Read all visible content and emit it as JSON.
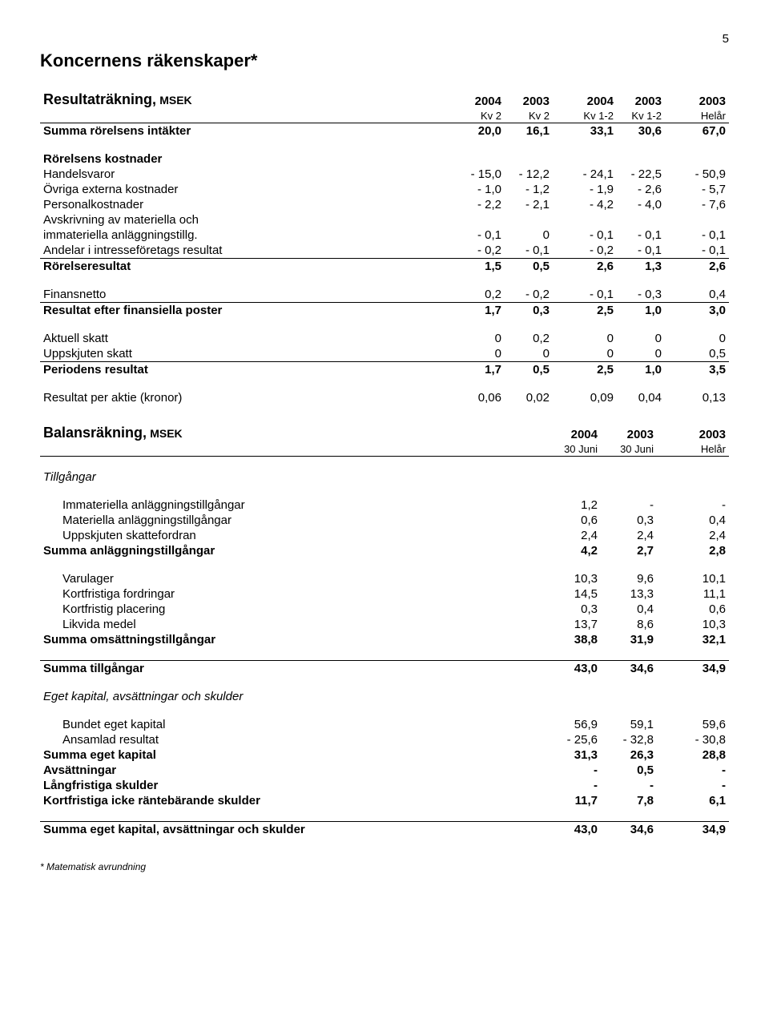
{
  "page_number": "5",
  "main_title": "Koncernens räkenskaper*",
  "income": {
    "title": "Resultaträkning,",
    "unit": "MSEK",
    "year_headers": [
      "2004",
      "2003",
      "2004",
      "2003",
      "2003"
    ],
    "sub_headers": [
      "Kv 2",
      "Kv 2",
      "Kv 1-2",
      "Kv 1-2",
      "Helår"
    ],
    "rows": [
      {
        "label": "Summa rörelsens intäkter",
        "vals": [
          "20,0",
          "16,1",
          "33,1",
          "30,6",
          "67,0"
        ],
        "bold": true,
        "space_after": true
      },
      {
        "label": "Rörelsens kostnader",
        "vals": [
          "",
          "",
          "",
          "",
          ""
        ],
        "bold": true
      },
      {
        "label": "Handelsvaror",
        "vals": [
          "- 15,0",
          "- 12,2",
          "- 24,1",
          "- 22,5",
          "- 50,9"
        ]
      },
      {
        "label": "Övriga externa kostnader",
        "vals": [
          "- 1,0",
          "- 1,2",
          "- 1,9",
          "- 2,6",
          "- 5,7"
        ]
      },
      {
        "label": "Personalkostnader",
        "vals": [
          "- 2,2",
          "- 2,1",
          "- 4,2",
          "- 4,0",
          "- 7,6"
        ]
      },
      {
        "label": "Avskrivning av materiella och",
        "vals": [
          "",
          "",
          "",
          "",
          ""
        ]
      },
      {
        "label": "immateriella anläggningstillg.",
        "vals": [
          "- 0,1",
          "0",
          "- 0,1",
          "- 0,1",
          "- 0,1"
        ]
      },
      {
        "label": "Andelar i intresseföretags resultat",
        "vals": [
          "- 0,2",
          "- 0,1",
          "- 0,2",
          "- 0,1",
          "- 0,1"
        ],
        "border_bottom": true
      },
      {
        "label": "Rörelseresultat",
        "vals": [
          "1,5",
          "0,5",
          "2,6",
          "1,3",
          "2,6"
        ],
        "bold": true,
        "space_after": true
      },
      {
        "label": "Finansnetto",
        "vals": [
          "0,2",
          "- 0,2",
          "- 0,1",
          "- 0,3",
          "0,4"
        ],
        "border_bottom": true
      },
      {
        "label": "Resultat efter finansiella poster",
        "vals": [
          "1,7",
          "0,3",
          "2,5",
          "1,0",
          "3,0"
        ],
        "bold": true,
        "space_after": true
      },
      {
        "label": "Aktuell skatt",
        "vals": [
          "0",
          "0,2",
          "0",
          "0",
          "0"
        ]
      },
      {
        "label": "Uppskjuten skatt",
        "vals": [
          "0",
          "0",
          "0",
          "0",
          "0,5"
        ],
        "border_bottom": true
      },
      {
        "label": "Periodens resultat",
        "vals": [
          "1,7",
          "0,5",
          "2,5",
          "1,0",
          "3,5"
        ],
        "bold": true,
        "space_after": true
      },
      {
        "label": "Resultat per aktie  (kronor)",
        "vals": [
          "0,06",
          "0,02",
          "0,09",
          "0,04",
          "0,13"
        ]
      }
    ]
  },
  "balance": {
    "title": "Balansräkning,",
    "unit": "MSEK",
    "year_headers": [
      "2004",
      "2003",
      "2003"
    ],
    "sub_headers": [
      "30 Juni",
      "30 Juni",
      "Helår"
    ],
    "assets_title": "Tillgångar",
    "rows_assets": [
      {
        "label": "Immateriella anläggningstillgångar",
        "vals": [
          "1,2",
          "-",
          "-"
        ],
        "indent": true
      },
      {
        "label": "Materiella anläggningstillgångar",
        "vals": [
          "0,6",
          "0,3",
          "0,4"
        ],
        "indent": true
      },
      {
        "label": "Uppskjuten skattefordran",
        "vals": [
          "2,4",
          "2,4",
          "2,4"
        ],
        "indent": true
      },
      {
        "label": "Summa anläggningstillgångar",
        "vals": [
          "4,2",
          "2,7",
          "2,8"
        ],
        "bold": true,
        "space_after": true
      },
      {
        "label": "Varulager",
        "vals": [
          "10,3",
          "9,6",
          "10,1"
        ],
        "indent": true
      },
      {
        "label": "Kortfristiga fordringar",
        "vals": [
          "14,5",
          "13,3",
          "11,1"
        ],
        "indent": true
      },
      {
        "label": "Kortfristig placering",
        "vals": [
          "0,3",
          "0,4",
          "0,6"
        ],
        "indent": true
      },
      {
        "label": "Likvida medel",
        "vals": [
          "13,7",
          "8,6",
          "10,3"
        ],
        "indent": true
      },
      {
        "label": "Summa omsättningstillgångar",
        "vals": [
          "38,8",
          "31,9",
          "32,1"
        ],
        "bold": true,
        "space_after": true
      },
      {
        "label": "Summa tillgångar",
        "vals": [
          "43,0",
          "34,6",
          "34,9"
        ],
        "bold": true,
        "border_top": true,
        "space_after": true
      }
    ],
    "liab_title": "Eget kapital, avsättningar och skulder",
    "rows_liab": [
      {
        "label": "Bundet eget kapital",
        "vals": [
          "56,9",
          "59,1",
          "59,6"
        ],
        "indent": true
      },
      {
        "label": "Ansamlad resultat",
        "vals": [
          "- 25,6",
          "- 32,8",
          "- 30,8"
        ],
        "indent": true
      },
      {
        "label": "Summa eget kapital",
        "vals": [
          "31,3",
          "26,3",
          "28,8"
        ],
        "bold": true
      },
      {
        "label": "Avsättningar",
        "vals": [
          "-",
          "0,5",
          "-"
        ],
        "bold": true
      },
      {
        "label": "Långfristiga skulder",
        "vals": [
          "-",
          "-",
          "-"
        ],
        "bold": true
      },
      {
        "label": "Kortfristiga icke räntebärande skulder",
        "vals": [
          "11,7",
          "7,8",
          "6,1"
        ],
        "bold": true,
        "space_after": true
      },
      {
        "label": "Summa eget kapital, avsättningar och skulder",
        "vals": [
          "43,0",
          "34,6",
          "34,9"
        ],
        "bold": true,
        "border_top": true
      }
    ]
  },
  "footnote": "* Matematisk avrundning"
}
